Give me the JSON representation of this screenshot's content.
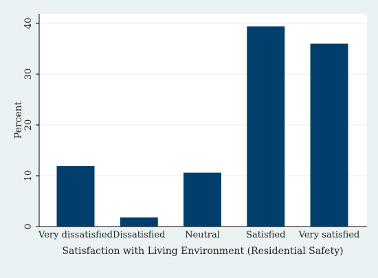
{
  "chart_data": {
    "type": "bar",
    "categories": [
      "Very dissatisfied",
      "Dissatisfied",
      "Neutral",
      "Satisfied",
      "Very satisfied"
    ],
    "values": [
      11.9,
      1.8,
      10.6,
      39.4,
      36.0
    ],
    "xlabel": "Satisfaction with Living Environment (Residential Safety)",
    "ylabel": "Percent",
    "ylim": [
      0,
      40
    ],
    "yticks": [
      0,
      10,
      20,
      30,
      40
    ],
    "grid": true,
    "bar_color": "#003f6b",
    "background": "#eaf2f3",
    "plot_background": "#ffffff",
    "grid_color": "#e6eef0"
  }
}
